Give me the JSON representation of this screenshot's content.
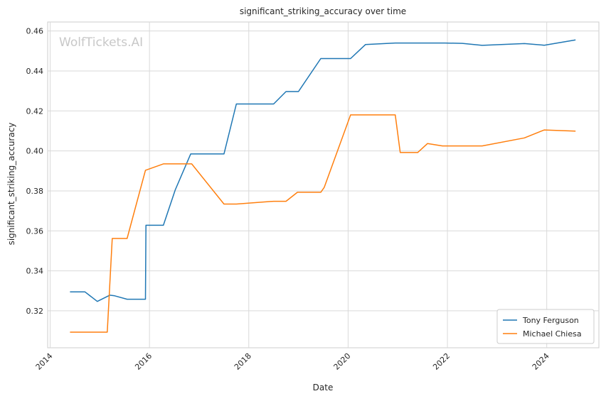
{
  "chart_data": {
    "type": "line",
    "title": "significant_striking_accuracy over time",
    "xlabel": "Date",
    "ylabel": "significant_striking_accuracy",
    "watermark": "WolfTickets.AI",
    "xlim": [
      2013.95,
      2025.05
    ],
    "ylim": [
      0.3015,
      0.4645
    ],
    "x_ticks": [
      2014,
      2016,
      2018,
      2020,
      2022,
      2024
    ],
    "x_tick_labels": [
      "2014",
      "2016",
      "2018",
      "2020",
      "2022",
      "2024"
    ],
    "y_ticks": [
      0.32,
      0.34,
      0.36,
      0.38,
      0.4,
      0.42,
      0.44,
      0.46
    ],
    "y_tick_labels": [
      "0.32",
      "0.34",
      "0.36",
      "0.38",
      "0.40",
      "0.42",
      "0.44",
      "0.46"
    ],
    "grid": true,
    "legend_position": "bottom-right",
    "series": [
      {
        "name": "Tony Ferguson",
        "color": "#1f77b4",
        "x": [
          2014.4,
          2014.7,
          2014.95,
          2015.2,
          2015.3,
          2015.55,
          2015.92,
          2015.93,
          2016.28,
          2016.52,
          2016.83,
          2017.5,
          2017.75,
          2018.5,
          2018.75,
          2019.0,
          2019.45,
          2020.05,
          2020.35,
          2020.95,
          2021.95,
          2022.3,
          2022.7,
          2023.55,
          2023.95,
          2024.58
        ],
        "y": [
          0.3295,
          0.3295,
          0.3247,
          0.3278,
          0.3275,
          0.3258,
          0.3258,
          0.3628,
          0.3628,
          0.3805,
          0.3985,
          0.3985,
          0.4235,
          0.4235,
          0.4297,
          0.4297,
          0.4462,
          0.4462,
          0.4532,
          0.454,
          0.454,
          0.4538,
          0.4528,
          0.4537,
          0.4529,
          0.4555
        ]
      },
      {
        "name": "Michael Chiesa",
        "color": "#ff7f0e",
        "x": [
          2014.4,
          2015.15,
          2015.25,
          2015.55,
          2015.92,
          2016.28,
          2016.85,
          2017.5,
          2017.75,
          2018.5,
          2018.75,
          2018.98,
          2019.45,
          2019.52,
          2020.05,
          2020.95,
          2021.05,
          2021.4,
          2021.6,
          2021.9,
          2022.7,
          2023.55,
          2023.95,
          2024.58
        ],
        "y": [
          0.3093,
          0.3093,
          0.3562,
          0.3562,
          0.3903,
          0.3935,
          0.3935,
          0.3734,
          0.3734,
          0.3748,
          0.3748,
          0.3793,
          0.3793,
          0.3818,
          0.418,
          0.418,
          0.3992,
          0.3992,
          0.4037,
          0.4025,
          0.4025,
          0.4065,
          0.4105,
          0.4099
        ]
      }
    ]
  }
}
